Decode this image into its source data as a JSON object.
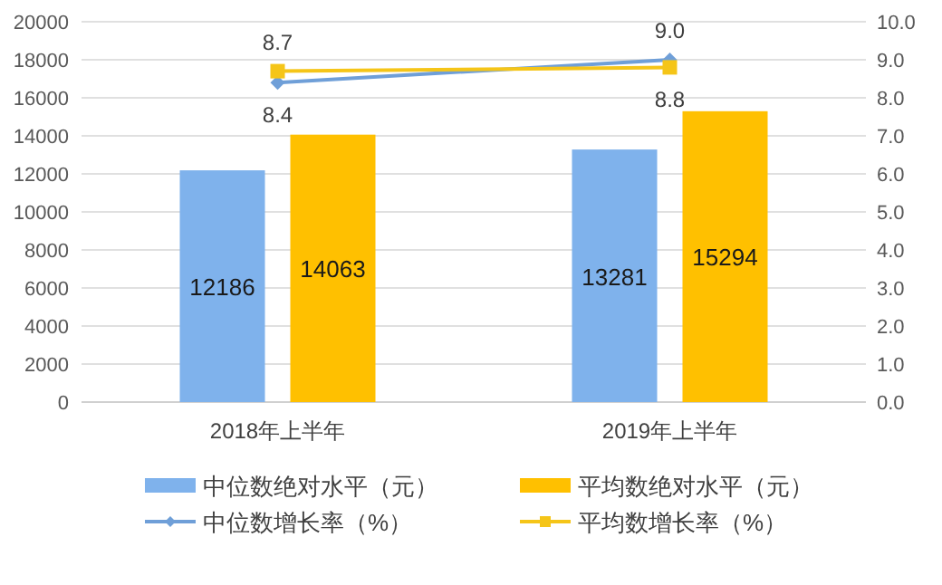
{
  "chart_data": {
    "type": "bar",
    "categories": [
      "2018年上半年",
      "2019年上半年"
    ],
    "series": [
      {
        "name": "中位数绝对水平（元）",
        "color": "#7fb2ec",
        "values": [
          12186,
          13281
        ]
      },
      {
        "name": "平均数绝对水平（元）",
        "color": "#ffc000",
        "values": [
          14063,
          15294
        ]
      },
      {
        "name": "中位数增长率（%）",
        "type": "line",
        "axis": "y2",
        "marker": "diamond",
        "color": "#6f9fd8",
        "values": [
          8.4,
          9.0
        ],
        "value_labels": [
          "8.4",
          "9.0"
        ]
      },
      {
        "name": "平均数增长率（%）",
        "type": "line",
        "axis": "y2",
        "marker": "square",
        "color": "#f5c518",
        "values": [
          8.7,
          8.8
        ],
        "value_labels": [
          "8.7",
          "8.8"
        ]
      }
    ],
    "ylim": [
      0,
      20000
    ],
    "yticks": [
      0,
      2000,
      4000,
      6000,
      8000,
      10000,
      12000,
      14000,
      16000,
      18000,
      20000
    ],
    "y2lim": [
      0,
      10
    ],
    "y2ticks": [
      {
        "value": 0,
        "label": "0.0"
      },
      {
        "value": 1,
        "label": "1.0"
      },
      {
        "value": 2,
        "label": "2.0"
      },
      {
        "value": 3,
        "label": "3.0"
      },
      {
        "value": 4,
        "label": "4.0"
      },
      {
        "value": 5,
        "label": "5.0"
      },
      {
        "value": 6,
        "label": "6.0"
      },
      {
        "value": 7,
        "label": "7.0"
      },
      {
        "value": 8,
        "label": "8.0"
      },
      {
        "value": 9,
        "label": "9.0"
      },
      {
        "value": 10,
        "label": "10.0"
      }
    ],
    "grid": "y",
    "legend": "bottom",
    "data_labels": true
  }
}
